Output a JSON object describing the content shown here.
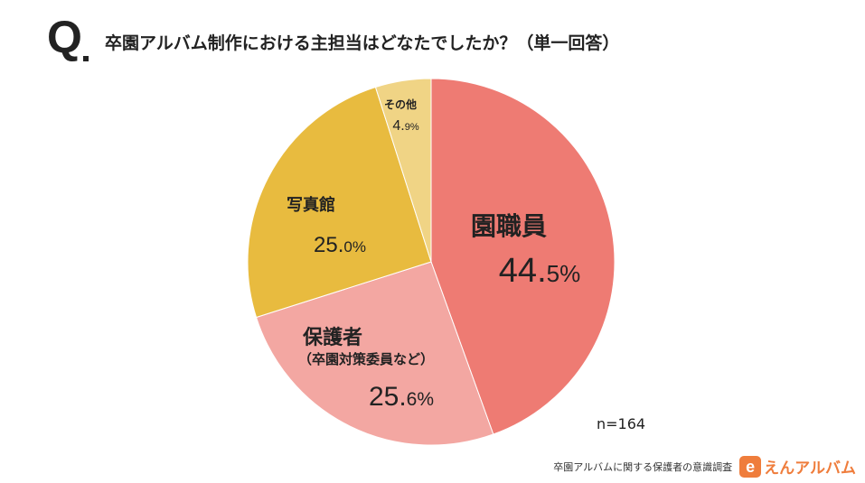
{
  "header": {
    "q_mark": "Q",
    "question": "卒園アルバム制作における主担当はどなたでしたか？（単一回答）"
  },
  "chart_data": {
    "type": "pie",
    "start_angle_deg": 0,
    "direction": "clockwise",
    "slices": [
      {
        "label": "園職員",
        "sublabel": "",
        "value": 44.5,
        "num": "44.",
        "decimal": "5%",
        "color": "#ee7b73"
      },
      {
        "label": "保護者",
        "sublabel": "（卒園対策委員など）",
        "value": 25.6,
        "num": "25.",
        "decimal": "6%",
        "color": "#f3a7a2"
      },
      {
        "label": "写真館",
        "sublabel": "",
        "value": 25.0,
        "num": "25.",
        "decimal": "0%",
        "color": "#e8bb3f"
      },
      {
        "label": "その他",
        "sublabel": "",
        "value": 4.9,
        "num": "4.",
        "decimal": "9%",
        "color": "#f0d485"
      }
    ],
    "n_label": "n=164"
  },
  "footer": {
    "survey": "卒園アルバムに関する保護者の意識調査",
    "logo_mark": "e",
    "logo_text": "えんアルバム"
  }
}
